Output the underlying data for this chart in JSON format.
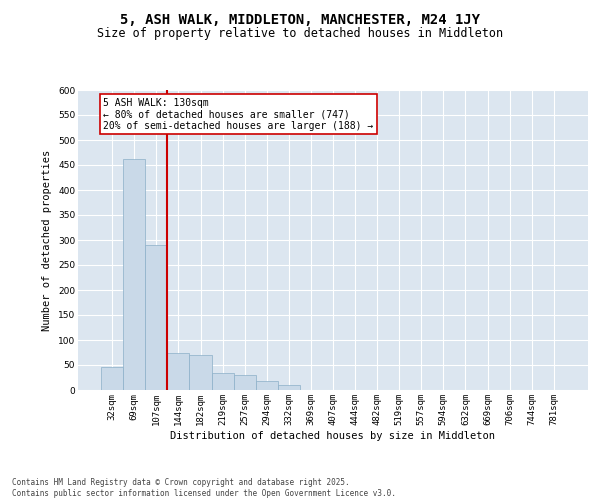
{
  "title": "5, ASH WALK, MIDDLETON, MANCHESTER, M24 1JY",
  "subtitle": "Size of property relative to detached houses in Middleton",
  "xlabel": "Distribution of detached houses by size in Middleton",
  "ylabel": "Number of detached properties",
  "bin_labels": [
    "32sqm",
    "69sqm",
    "107sqm",
    "144sqm",
    "182sqm",
    "219sqm",
    "257sqm",
    "294sqm",
    "332sqm",
    "369sqm",
    "407sqm",
    "444sqm",
    "482sqm",
    "519sqm",
    "557sqm",
    "594sqm",
    "632sqm",
    "669sqm",
    "706sqm",
    "744sqm",
    "781sqm"
  ],
  "bar_values": [
    47,
    462,
    290,
    75,
    70,
    35,
    30,
    18,
    10,
    0,
    0,
    0,
    0,
    0,
    0,
    0,
    0,
    0,
    0,
    0,
    0
  ],
  "bar_color": "#c9d9e8",
  "bar_edge_color": "#8bafc8",
  "vline_color": "#cc0000",
  "annotation_text": "5 ASH WALK: 130sqm\n← 80% of detached houses are smaller (747)\n20% of semi-detached houses are larger (188) →",
  "annotation_box_color": "#ffffff",
  "annotation_box_edge": "#cc0000",
  "ylim": [
    0,
    600
  ],
  "yticks": [
    0,
    50,
    100,
    150,
    200,
    250,
    300,
    350,
    400,
    450,
    500,
    550,
    600
  ],
  "background_color": "#dce6f0",
  "footer_text": "Contains HM Land Registry data © Crown copyright and database right 2025.\nContains public sector information licensed under the Open Government Licence v3.0.",
  "title_fontsize": 10,
  "subtitle_fontsize": 8.5,
  "axis_label_fontsize": 7.5,
  "tick_fontsize": 6.5,
  "annotation_fontsize": 7,
  "footer_fontsize": 5.5
}
